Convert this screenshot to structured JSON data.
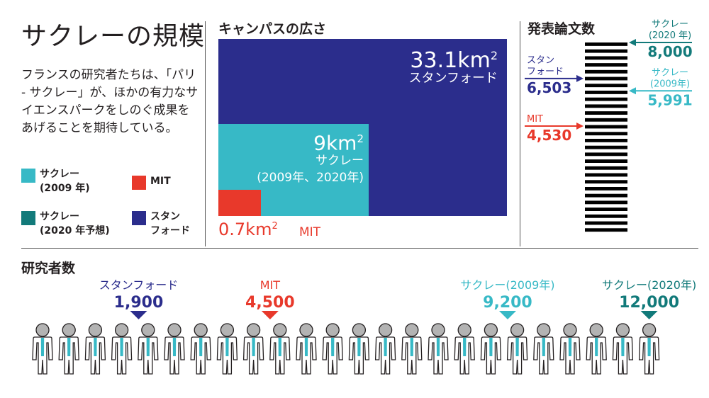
{
  "title": "サクレーの規模",
  "description": "フランスの研究者たちは、「パリ - サクレー」が、ほかの有力なサイエンスパークをしのぐ成果をあげることを期待している。",
  "legend": [
    {
      "label_line1": "サクレー",
      "label_line2": "(2009 年)",
      "color": "#37b9c6"
    },
    {
      "label_line1": "MIT",
      "label_line2": "",
      "color": "#e8392b"
    },
    {
      "label_line1": "サクレー",
      "label_line2": "(2020 年予想)",
      "color": "#127a7a"
    },
    {
      "label_line1": "スタン",
      "label_line2": "フォード",
      "color": "#2b2d8c"
    }
  ],
  "colors": {
    "saclay2009": "#37b9c6",
    "saclay2020": "#127a7a",
    "mit": "#e8392b",
    "stanford": "#2b2d8c",
    "person": "#b3b3b3",
    "tie": "#37b9c6"
  },
  "chart_data": [
    {
      "type": "area",
      "title": "キャンパスの広さ",
      "unit": "km²",
      "items": [
        {
          "name": "スタンフォード",
          "value": 33.1,
          "value_text": "33.1km",
          "sup": "2"
        },
        {
          "name": "サクレー",
          "sub": "(2009年、2020年)",
          "value": 9,
          "value_text": "9km",
          "sup": "2"
        },
        {
          "name": "MIT",
          "value": 0.7,
          "value_text": "0.7km",
          "sup": "2"
        }
      ]
    },
    {
      "type": "bar",
      "title": "発表論文数",
      "axis_max": 8000,
      "stripe_count": 28,
      "markers": [
        {
          "name": "サクレー",
          "sub": "(2020 年)",
          "value": 8000,
          "value_text": "8,000",
          "side": "right",
          "color": "#127a7a"
        },
        {
          "name": "スタン",
          "name2": "フォード",
          "value": 6503,
          "value_text": "6,503",
          "side": "left",
          "color": "#2b2d8c"
        },
        {
          "name": "サクレー",
          "sub": "(2009年)",
          "value": 5991,
          "value_text": "5,991",
          "side": "right",
          "color": "#37b9c6"
        },
        {
          "name": "MIT",
          "value": 4530,
          "value_text": "4,530",
          "side": "left",
          "color": "#e8392b"
        }
      ]
    },
    {
      "type": "scatter",
      "title": "研究者数",
      "figure_count": 24,
      "axis_max": 12000,
      "markers": [
        {
          "name": "スタンフォード",
          "value": 1900,
          "value_text": "1,900",
          "color": "#2b2d8c"
        },
        {
          "name": "MIT",
          "value": 4500,
          "value_text": "4,500",
          "color": "#e8392b"
        },
        {
          "name": "サクレー(2009年)",
          "value": 9200,
          "value_text": "9,200",
          "color": "#37b9c6"
        },
        {
          "name": "サクレー(2020年)",
          "value": 12000,
          "value_text": "12,000",
          "color": "#127a7a"
        }
      ]
    }
  ]
}
